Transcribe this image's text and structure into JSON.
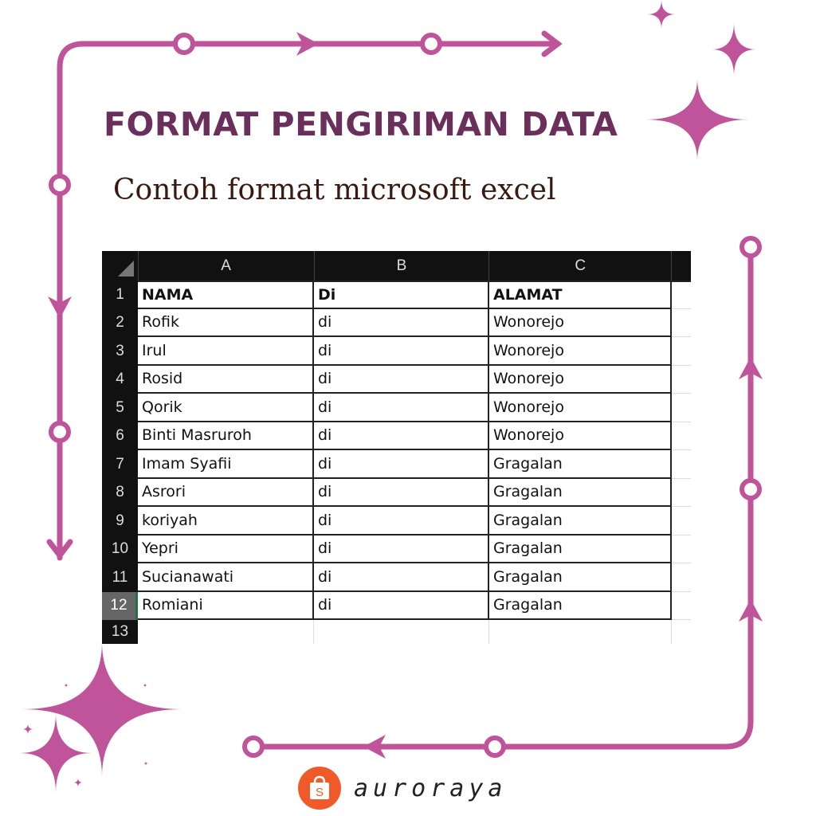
{
  "title": "FORMAT PENGIRIMAN DATA",
  "subtitle": "Contoh format microsoft excel",
  "colors": {
    "accent": "#c0549a",
    "title": "#6b2f5c",
    "brand_logo": "#f05a28"
  },
  "sheet": {
    "columns": [
      "A",
      "B",
      "C"
    ],
    "rows": [
      {
        "n": "1",
        "a": "NAMA",
        "b": "Di",
        "c": "ALAMAT"
      },
      {
        "n": "2",
        "a": "Rofik",
        "b": "di",
        "c": "Wonorejo"
      },
      {
        "n": "3",
        "a": "Irul",
        "b": "di",
        "c": "Wonorejo"
      },
      {
        "n": "4",
        "a": "Rosid",
        "b": "di",
        "c": "Wonorejo"
      },
      {
        "n": "5",
        "a": "Qorik",
        "b": "di",
        "c": "Wonorejo"
      },
      {
        "n": "6",
        "a": "Binti Masruroh",
        "b": "di",
        "c": "Wonorejo"
      },
      {
        "n": "7",
        "a": "Imam Syafii",
        "b": "di",
        "c": "Gragalan"
      },
      {
        "n": "8",
        "a": "Asrori",
        "b": "di",
        "c": "Gragalan"
      },
      {
        "n": "9",
        "a": "koriyah",
        "b": "di",
        "c": "Gragalan"
      },
      {
        "n": "10",
        "a": "Yepri",
        "b": "di",
        "c": "Gragalan"
      },
      {
        "n": "11",
        "a": "Sucianawati",
        "b": "di",
        "c": "Gragalan"
      },
      {
        "n": "12",
        "a": "Romiani",
        "b": "di",
        "c": "Gragalan"
      }
    ],
    "empty_row": "13",
    "selected_row": "12"
  },
  "brand": {
    "name": "auroraya",
    "logo_letter": "S",
    "logo_icon": "shopping-bag-icon"
  }
}
